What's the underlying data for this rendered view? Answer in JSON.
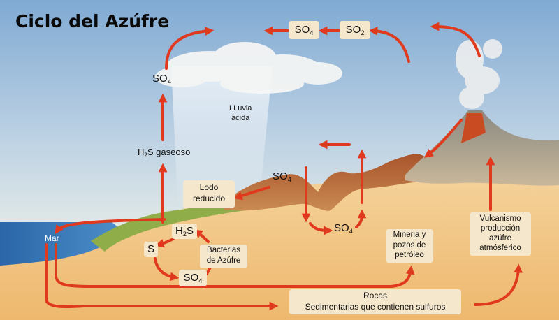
{
  "title": "Ciclo del Azúfre",
  "labels": {
    "so4_top": {
      "main": "SO",
      "sub": "4"
    },
    "so2_top": {
      "main": "SO",
      "sub": "2"
    },
    "so4_left": {
      "main": "SO",
      "sub": "4"
    },
    "lluvia": "LLuvia\nácida",
    "h2s_gas": {
      "pre": "H",
      "sub": "2",
      "post": "S gaseoso"
    },
    "so4_mid": {
      "main": "SO",
      "sub": "4"
    },
    "lodo": "Lodo\nreducido",
    "so4_valley": {
      "main": "SO",
      "sub": "4"
    },
    "mar": "Mar",
    "h2s_small": {
      "pre": "H",
      "sub": "2",
      "post": "S"
    },
    "s": "S",
    "bacterias": "Bacterias\nde Azúfre",
    "so4_bottom": {
      "main": "SO",
      "sub": "4"
    },
    "mineria": "Mineria y\npozos de\npetróleo",
    "vulcanismo": "Vulcanismo\nproducción\nazúfre\natmósferico",
    "rocas": "Rocas\nSedimentarias que contienen sulfuros"
  },
  "colors": {
    "arrow": "#e03a1e",
    "sky_top": "#7fa9d2",
    "sky_bottom": "#eef2ec",
    "sea": "#2f6fb3",
    "ground": "#f0c98e",
    "label_box": "#f5e7cc"
  }
}
